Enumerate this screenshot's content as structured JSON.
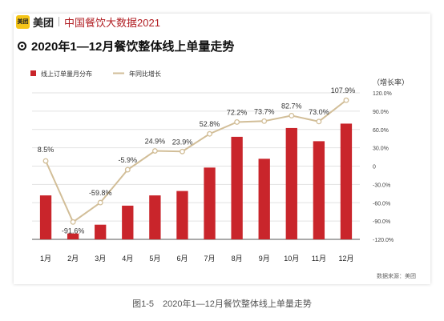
{
  "brand": {
    "logo_text": "美团",
    "name": "美团",
    "subtitle": "中国餐饮大数据2021"
  },
  "chart_data": {
    "type": "bar+line",
    "title": "2020年1—12月餐饮整体线上单量走势",
    "categories": [
      "1月",
      "2月",
      "3月",
      "4月",
      "5月",
      "6月",
      "7月",
      "8月",
      "9月",
      "10月",
      "11月",
      "12月"
    ],
    "series": [
      {
        "name": "线上订单量月分布",
        "kind": "bar",
        "color": "#c9252b",
        "values": [
          3.0,
          0.4,
          1.0,
          2.3,
          3.0,
          3.3,
          4.9,
          7.0,
          5.5,
          7.6,
          6.7,
          7.9
        ]
      },
      {
        "name": "年同比增长",
        "kind": "line",
        "color": "#d2be98",
        "axis": "right",
        "values": [
          8.5,
          -91.6,
          -59.8,
          -5.9,
          24.9,
          23.9,
          52.8,
          72.2,
          73.7,
          82.7,
          73.0,
          107.9
        ],
        "labels": [
          "8.5%",
          "-91.6%",
          "-59.8%",
          "-5.9%",
          "24.9%",
          "23.9%",
          "52.8%",
          "72.2%",
          "73.7%",
          "82.7%",
          "73.0%",
          "107.9%"
        ]
      }
    ],
    "right_axis": {
      "label": "（增长率）",
      "range": [
        -120,
        120
      ],
      "ticks": [
        120,
        90,
        60,
        30,
        0,
        -30,
        -60,
        -90,
        -120
      ],
      "tick_labels": [
        "120.0%",
        "90.0%",
        "60.0%",
        "30.0%",
        "0",
        "-30.0%",
        "-60.0%",
        "-90.0%",
        "-120.0%"
      ]
    },
    "bar_range": [
      0,
      10
    ],
    "grid": true,
    "legend_position": "top-left",
    "source": "数据来源：美团"
  },
  "caption": "图1-5　2020年1—12月餐饮整体线上单量走势"
}
